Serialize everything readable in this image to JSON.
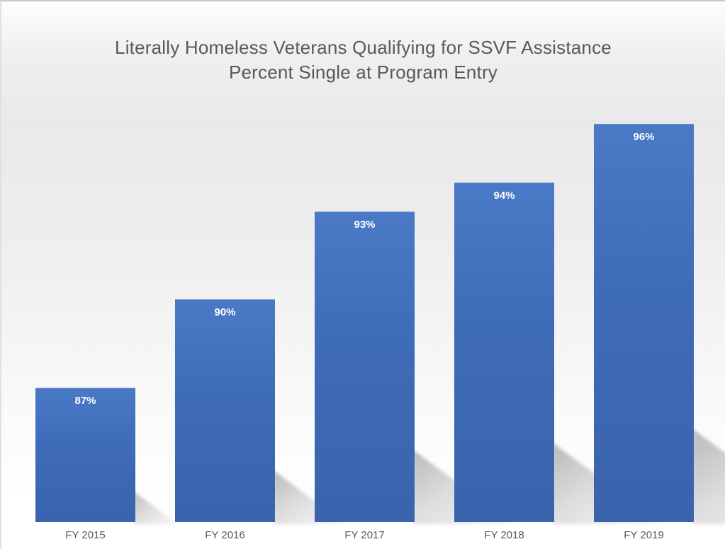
{
  "slide": {
    "title_line1": "Literally Homeless Veterans Qualifying for SSVF Assistance",
    "title_line2": "Percent Single at Program Entry"
  },
  "colors": {
    "title_text": "#595959",
    "axis_label_text": "#595959",
    "bar_fill_top": "#4a79c6",
    "bar_fill_bottom": "#3a63ac",
    "bar_value_text": "#ffffff"
  },
  "chart_data": {
    "type": "bar",
    "title": "Literally Homeless Veterans Qualifying for SSVF Assistance Percent Single at Program Entry",
    "categories": [
      "FY 2015",
      "FY 2016",
      "FY 2017",
      "FY 2018",
      "FY 2019"
    ],
    "values": [
      87,
      90,
      93,
      94,
      96
    ],
    "value_labels": [
      "87%",
      "90%",
      "93%",
      "94%",
      "96%"
    ],
    "xlabel": "",
    "ylabel": "",
    "ylim": [
      82.4,
      97
    ],
    "grid": false,
    "legend": false,
    "data_label_position": "inside-top",
    "bar_effect": "perspective-shadow-lower-right"
  }
}
